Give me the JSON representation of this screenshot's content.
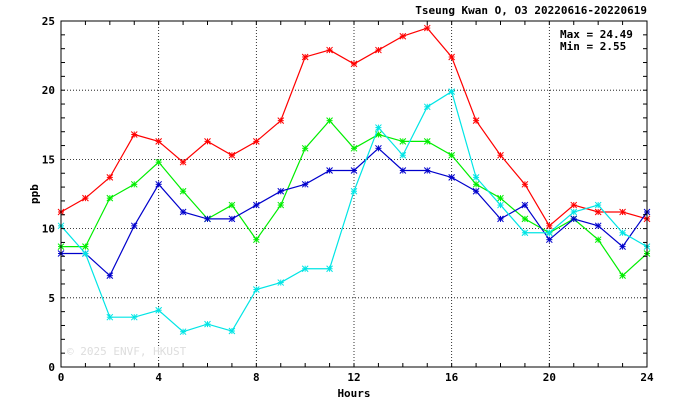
{
  "chart_data": {
    "type": "line",
    "title": "Tseung Kwan O, O3 20220616-20220619",
    "xlabel": "Hours",
    "ylabel": "ppb",
    "xlim": [
      0,
      24
    ],
    "ylim": [
      0,
      25
    ],
    "xticks": [
      0,
      4,
      8,
      12,
      16,
      20,
      24
    ],
    "yticks": [
      0,
      5,
      10,
      15,
      20,
      25
    ],
    "grid": true,
    "x": [
      0,
      1,
      2,
      3,
      4,
      5,
      6,
      7,
      8,
      9,
      10,
      11,
      12,
      13,
      14,
      15,
      16,
      17,
      18,
      19,
      20,
      21,
      22,
      23,
      24
    ],
    "series": [
      {
        "color": "#ff0000",
        "values": [
          11.2,
          12.2,
          13.7,
          16.8,
          16.3,
          14.8,
          16.3,
          15.3,
          16.3,
          17.8,
          22.4,
          22.9,
          21.9,
          22.9,
          23.9,
          24.49,
          22.4,
          17.8,
          15.3,
          13.2,
          10.2,
          11.7,
          11.2,
          11.2,
          10.7
        ]
      },
      {
        "color": "#00ee00",
        "values": [
          8.7,
          8.7,
          12.2,
          13.2,
          14.8,
          12.7,
          10.7,
          11.7,
          9.2,
          11.7,
          15.8,
          17.8,
          15.8,
          16.8,
          16.3,
          16.3,
          15.3,
          13.2,
          12.2,
          10.7,
          9.7,
          10.7,
          9.2,
          6.6,
          8.2
        ]
      },
      {
        "color": "#0000cc",
        "values": [
          8.2,
          8.2,
          6.6,
          10.2,
          13.2,
          11.2,
          10.7,
          10.7,
          11.7,
          12.7,
          13.2,
          14.2,
          14.2,
          15.8,
          14.2,
          14.2,
          13.7,
          12.7,
          10.7,
          11.7,
          9.2,
          10.7,
          10.2,
          8.7,
          11.2
        ]
      },
      {
        "color": "#00e5e5",
        "values": [
          10.2,
          8.2,
          3.6,
          3.6,
          4.1,
          2.55,
          3.1,
          2.6,
          5.6,
          6.1,
          7.1,
          7.1,
          12.7,
          17.3,
          15.3,
          18.8,
          19.9,
          13.7,
          11.7,
          9.7,
          9.7,
          11.2,
          11.7,
          9.7,
          8.7
        ]
      }
    ],
    "annotations": {
      "max": "Max = 24.49",
      "min": "Min =  2.55"
    },
    "watermark": "© 2025  ENVF, HKUST"
  }
}
